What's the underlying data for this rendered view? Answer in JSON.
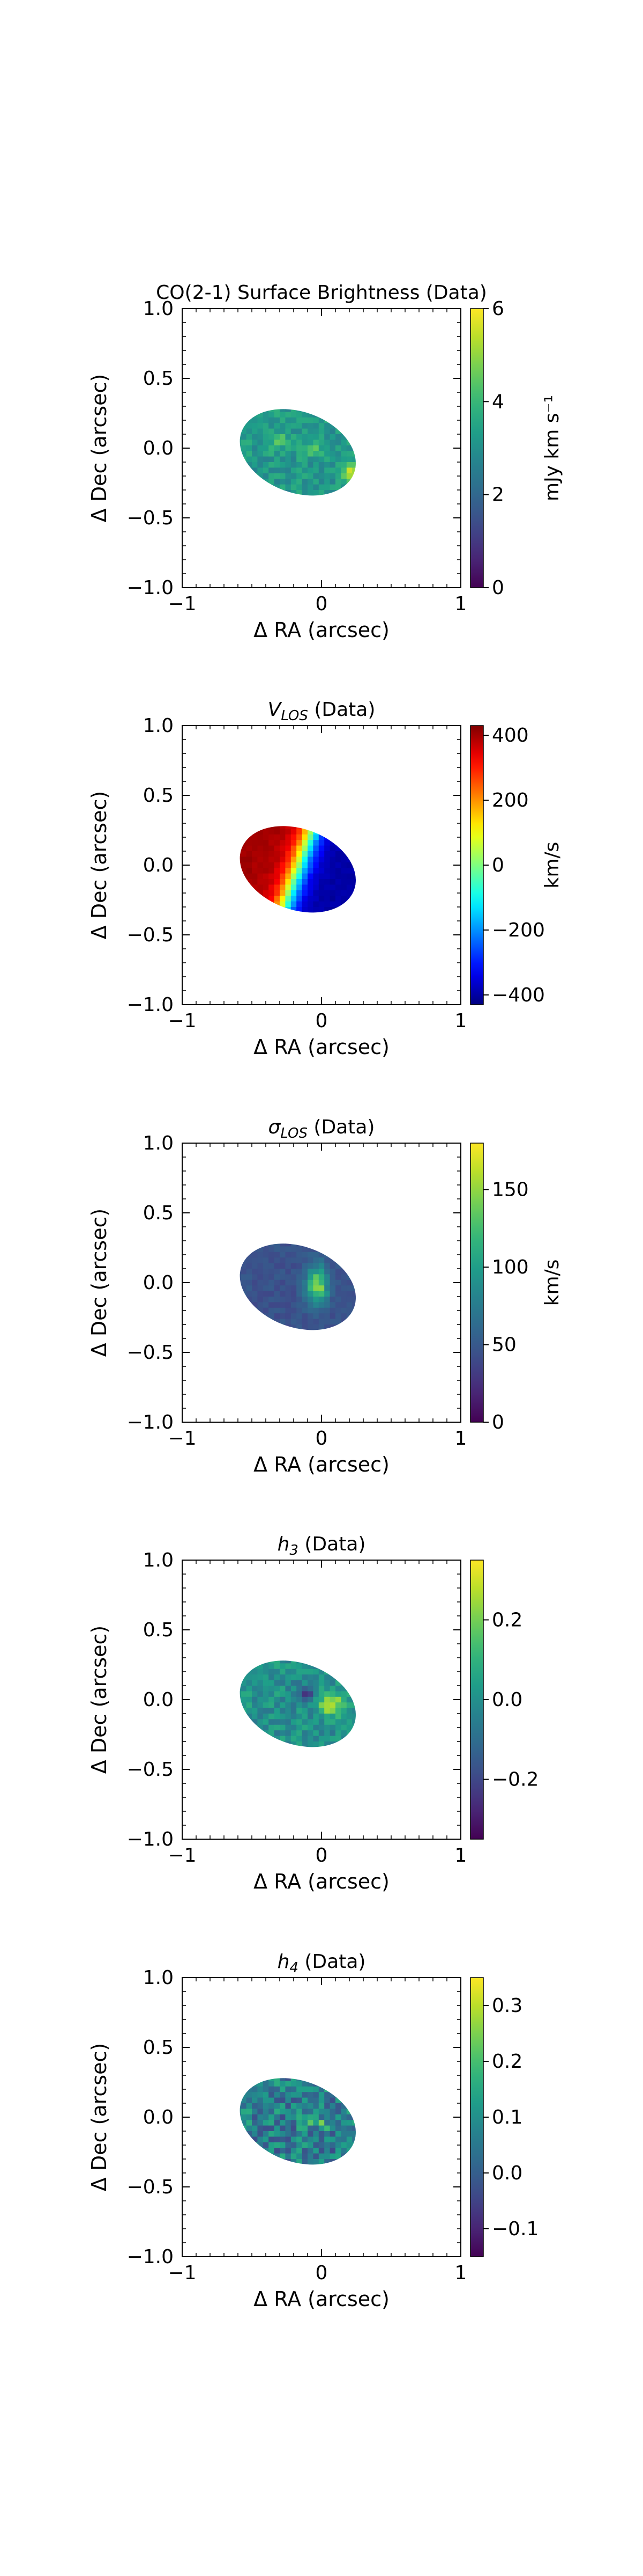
{
  "chart_data": [
    {
      "type": "heatmap",
      "title": "CO(2-1) Surface Brightness (Data)",
      "xlabel": "Δ RA (arcsec)",
      "ylabel": "Δ Dec (arcsec)",
      "xlim": [
        -1.0,
        1.0
      ],
      "ylim": [
        -1.0,
        1.0
      ],
      "xticks": [
        "−1",
        "0",
        "1"
      ],
      "yticks": [
        "1.0",
        "0.5",
        "0.0",
        "−0.5",
        "−1.0"
      ],
      "colormap": "viridis",
      "colorbar": {
        "label": "mJy km s⁻¹",
        "range": [
          0,
          6
        ],
        "ticks": [
          "0",
          "2",
          "4",
          "6"
        ]
      },
      "ellipse": {
        "center": [
          -0.17,
          -0.03
        ],
        "semi_axes": [
          0.43,
          0.29
        ],
        "pa_deg": -20
      },
      "map_model": "surface_brightness"
    },
    {
      "type": "heatmap",
      "title": "V",
      "title_subscript": "LOS",
      "title_suffix": " (Data)",
      "xlabel": "Δ RA (arcsec)",
      "ylabel": "Δ Dec (arcsec)",
      "xlim": [
        -1.0,
        1.0
      ],
      "ylim": [
        -1.0,
        1.0
      ],
      "xticks": [
        "−1",
        "0",
        "1"
      ],
      "yticks": [
        "1.0",
        "0.5",
        "0.0",
        "−0.5",
        "−1.0"
      ],
      "colormap": "jet",
      "colorbar": {
        "label": "km/s",
        "range": [
          -430,
          430
        ],
        "ticks": [
          "400",
          "200",
          "0",
          "−200",
          "−400"
        ]
      },
      "ellipse": {
        "center": [
          -0.17,
          -0.03
        ],
        "semi_axes": [
          0.43,
          0.29
        ],
        "pa_deg": -20
      },
      "map_model": "velocity"
    },
    {
      "type": "heatmap",
      "title": "σ",
      "title_subscript": "LOS",
      "title_suffix": " (Data)",
      "xlabel": "Δ RA (arcsec)",
      "ylabel": "Δ Dec (arcsec)",
      "xlim": [
        -1.0,
        1.0
      ],
      "ylim": [
        -1.0,
        1.0
      ],
      "xticks": [
        "−1",
        "0",
        "1"
      ],
      "yticks": [
        "1.0",
        "0.5",
        "0.0",
        "−0.5",
        "−1.0"
      ],
      "colormap": "viridis",
      "colorbar": {
        "label": "km/s",
        "range": [
          0,
          180
        ],
        "ticks": [
          "0",
          "50",
          "100",
          "150"
        ]
      },
      "ellipse": {
        "center": [
          -0.17,
          -0.03
        ],
        "semi_axes": [
          0.43,
          0.29
        ],
        "pa_deg": -20
      },
      "map_model": "dispersion"
    },
    {
      "type": "heatmap",
      "title": "h",
      "title_subscript": "3",
      "title_suffix": " (Data)",
      "xlabel": "Δ RA (arcsec)",
      "ylabel": "Δ Dec (arcsec)",
      "xlim": [
        -1.0,
        1.0
      ],
      "ylim": [
        -1.0,
        1.0
      ],
      "xticks": [
        "−1",
        "0",
        "1"
      ],
      "yticks": [
        "1.0",
        "0.5",
        "0.0",
        "−0.5",
        "−1.0"
      ],
      "colormap": "viridis",
      "colorbar": {
        "label": "",
        "range": [
          -0.35,
          0.35
        ],
        "ticks": [
          "0.2",
          "0.0",
          "−0.2"
        ]
      },
      "ellipse": {
        "center": [
          -0.17,
          -0.03
        ],
        "semi_axes": [
          0.43,
          0.29
        ],
        "pa_deg": -20
      },
      "map_model": "h3"
    },
    {
      "type": "heatmap",
      "title": "h",
      "title_subscript": "4",
      "title_suffix": " (Data)",
      "xlabel": "Δ RA (arcsec)",
      "ylabel": "Δ Dec (arcsec)",
      "xlim": [
        -1.0,
        1.0
      ],
      "ylim": [
        -1.0,
        1.0
      ],
      "xticks": [
        "−1",
        "0",
        "1"
      ],
      "yticks": [
        "1.0",
        "0.5",
        "0.0",
        "−0.5",
        "−1.0"
      ],
      "colormap": "viridis",
      "colorbar": {
        "label": "",
        "range": [
          -0.15,
          0.35
        ],
        "ticks": [
          "0.3",
          "0.2",
          "0.1",
          "0.0",
          "−0.1"
        ]
      },
      "ellipse": {
        "center": [
          -0.17,
          -0.03
        ],
        "semi_axes": [
          0.43,
          0.29
        ],
        "pa_deg": -20
      },
      "map_model": "h4"
    }
  ]
}
